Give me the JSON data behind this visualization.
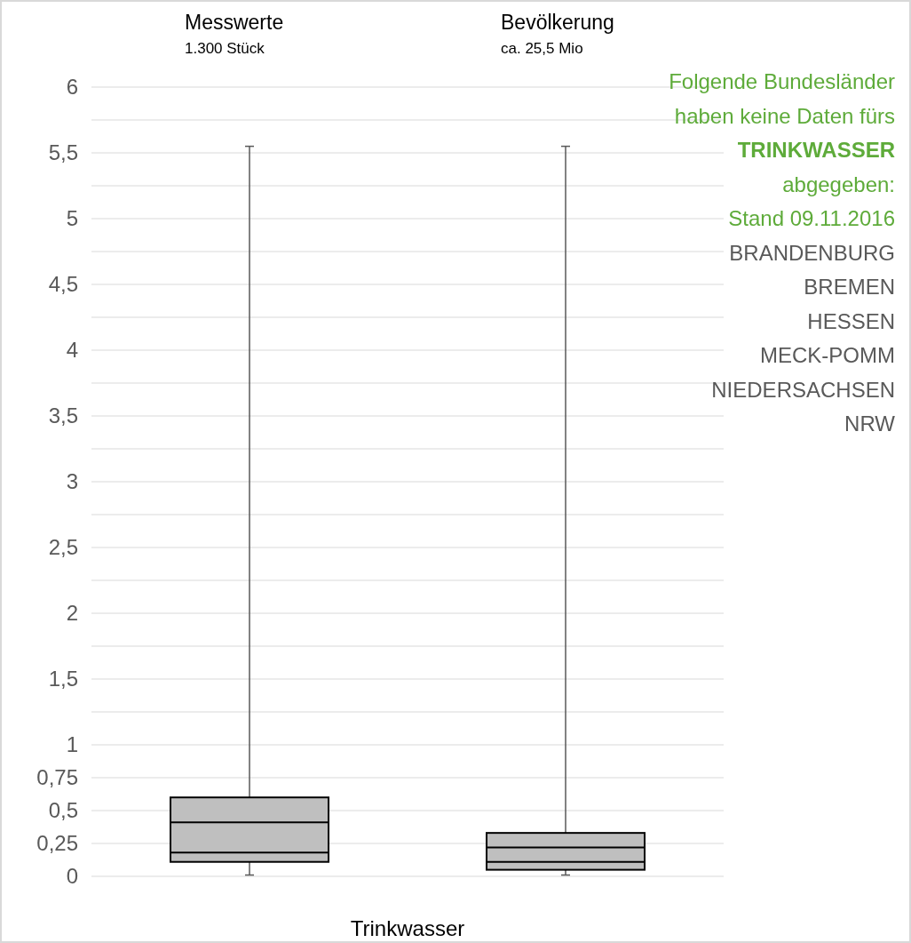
{
  "chart_data": {
    "type": "box",
    "xlabel": "Trinkwasser",
    "categories": [
      "Messwerte",
      "Bevölkerung"
    ],
    "boxes": [
      {
        "low": 0.01,
        "q1": 0.11,
        "median": 0.18,
        "q3": 0.6,
        "high": 5.55,
        "mean": 0.41
      },
      {
        "low": 0.01,
        "q1": 0.05,
        "median": 0.11,
        "q3": 0.33,
        "high": 5.55,
        "mean": 0.22
      }
    ],
    "color": "#bfbfbf",
    "ylim": [
      0,
      6
    ],
    "yticks": [
      0,
      {
        "value": 0.25,
        "label": "0,25"
      },
      {
        "value": 0.5,
        "label": "0,5"
      },
      {
        "value": 0.75,
        "label": "0,75"
      },
      1,
      {
        "value": 1.25,
        "label": null
      },
      {
        "value": 1.5,
        "label": "1,5"
      },
      {
        "value": 1.75,
        "label": null
      },
      2,
      {
        "value": 2.25,
        "label": null
      },
      {
        "value": 2.5,
        "label": "2,5"
      },
      {
        "value": 2.75,
        "label": null
      },
      3,
      {
        "value": 3.25,
        "label": null
      },
      {
        "value": 3.5,
        "label": "3,5"
      },
      {
        "value": 3.75,
        "label": null
      },
      4,
      {
        "value": 4.25,
        "label": null
      },
      {
        "value": 4.5,
        "label": "4,5"
      },
      {
        "value": 4.75,
        "label": null
      },
      5,
      {
        "value": 5.25,
        "label": null
      },
      {
        "value": 5.5,
        "label": "5,5"
      },
      {
        "value": 5.75,
        "label": null
      },
      6
    ],
    "grid": "y",
    "annotations": [
      "1.300 Stück",
      "ca. 25,5 Mio",
      "Folgende Bundesländer",
      "haben keine Daten fürs",
      "TRINKWASSER",
      "abgegeben:",
      "Stand 09.11.2016",
      "BRANDENBURG",
      "BREMEN",
      "HESSEN",
      "MECK-POMM",
      "NIEDERSACHSEN",
      "NRW"
    ]
  }
}
